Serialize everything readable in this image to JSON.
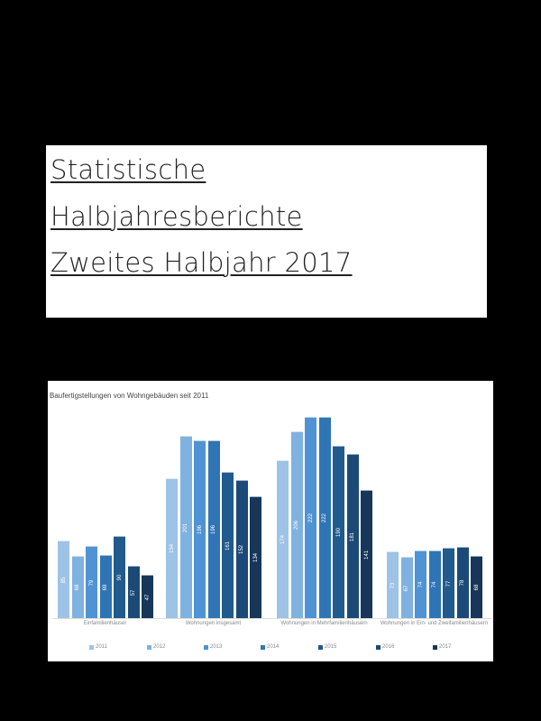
{
  "title_card": {
    "lines": [
      "Statistische",
      "Halbjahresberichte",
      "Zweites Halbjahr 2017"
    ]
  },
  "chart": {
    "title": "Baufertigstellungen von Wohngebäuden seit 2011"
  },
  "chart_data": {
    "type": "bar",
    "title": "Baufertigstellungen von Wohngebäuden seit 2011",
    "categories": [
      "Einfamilienhäuser",
      "Wohnungen insgesamt",
      "Wohnungen in Mehrfamilienhäusern",
      "Wohnungen in Ein- und Zweifamilienhäusern"
    ],
    "series": [
      {
        "name": "2011",
        "color": "#9dc3e6",
        "values": [
          85,
          154,
          174,
          73
        ]
      },
      {
        "name": "2012",
        "color": "#7fb2e0",
        "values": [
          68,
          201,
          206,
          67
        ]
      },
      {
        "name": "2013",
        "color": "#4f93d4",
        "values": [
          79,
          196,
          222,
          74
        ]
      },
      {
        "name": "2014",
        "color": "#2f75b5",
        "values": [
          69,
          196,
          222,
          74
        ]
      },
      {
        "name": "2015",
        "color": "#215a8c",
        "values": [
          90,
          161,
          190,
          77
        ]
      },
      {
        "name": "2016",
        "color": "#1c4a78",
        "values": [
          57,
          152,
          181,
          78
        ]
      },
      {
        "name": "2017",
        "color": "#17365a",
        "values": [
          47,
          134,
          141,
          68
        ]
      }
    ],
    "xlabel": "",
    "ylabel": "",
    "grid": false,
    "legend_position": "bottom",
    "note": "values estimated from bar heights; data labels illegible"
  }
}
